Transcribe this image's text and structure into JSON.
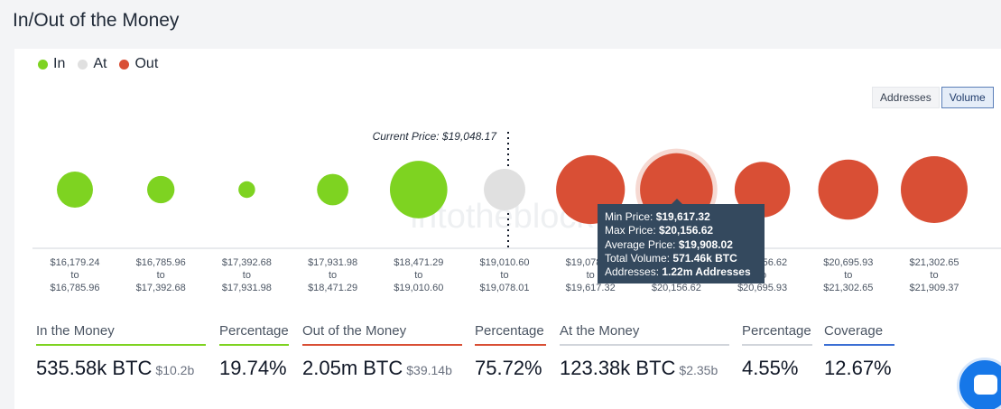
{
  "page": {
    "title": "In/Out of the Money"
  },
  "legend": [
    {
      "label": "In",
      "color": "#7ed321"
    },
    {
      "label": "At",
      "color": "#e0e0e0"
    },
    {
      "label": "Out",
      "color": "#d94f35"
    }
  ],
  "toggle": {
    "addresses_label": "Addresses",
    "volume_label": "Volume",
    "active": "Volume"
  },
  "watermark": "intotheblock",
  "chart_data": {
    "type": "bubble",
    "title": "",
    "current_price_label": "Current Price: $19,048.17",
    "current_price": 19048.17,
    "categories": [
      {
        "from": "$16,179.24",
        "to": "$16,785.96",
        "status": "In",
        "relative_size": 0.54
      },
      {
        "from": "$16,785.96",
        "to": "$17,392.68",
        "status": "In",
        "relative_size": 0.41
      },
      {
        "from": "$17,392.68",
        "to": "$17,931.98",
        "status": "In",
        "relative_size": 0.25
      },
      {
        "from": "$17,931.98",
        "to": "$18,471.29",
        "status": "In",
        "relative_size": 0.47
      },
      {
        "from": "$18,471.29",
        "to": "$19,010.60",
        "status": "In",
        "relative_size": 0.86
      },
      {
        "from": "$19,010.60",
        "to": "$19,078.01",
        "status": "At",
        "relative_size": 0.62
      },
      {
        "from": "$19,078.01",
        "to": "$19,617.32",
        "status": "Out",
        "relative_size": 1.03
      },
      {
        "from": "$19,617.32",
        "to": "$20,156.62",
        "status": "Out",
        "relative_size": 1.09,
        "hovered": true
      },
      {
        "from": "$20,156.62",
        "to": "$20,695.93",
        "status": "Out",
        "relative_size": 0.83
      },
      {
        "from": "$20,695.93",
        "to": "$21,302.65",
        "status": "Out",
        "relative_size": 0.9
      },
      {
        "from": "$21,302.65",
        "to": "$21,909.37",
        "status": "Out",
        "relative_size": 1.0
      }
    ],
    "range_connector": "to"
  },
  "tooltip": {
    "min_price_label": "Min Price:",
    "min_price": "$19,617.32",
    "max_price_label": "Max Price:",
    "max_price": "$20,156.62",
    "avg_price_label": "Average Price:",
    "avg_price": "$19,908.02",
    "volume_label": "Total Volume:",
    "volume": "571.46k BTC",
    "addresses_label": "Addresses:",
    "addresses": "1.22m Addresses"
  },
  "stats": [
    {
      "label": "In the Money",
      "value": "535.58k BTC",
      "sub": "$10.2b",
      "color": "#7ed321"
    },
    {
      "label": "Percentage",
      "value": "19.74%",
      "sub": "",
      "color": "#7ed321"
    },
    {
      "label": "Out of the Money",
      "value": "2.05m BTC",
      "sub": "$39.14b",
      "color": "#d94f35"
    },
    {
      "label": "Percentage",
      "value": "75.72%",
      "sub": "",
      "color": "#d94f35"
    },
    {
      "label": "At the Money",
      "value": "123.38k BTC",
      "sub": "$2.35b",
      "color": "#d1d5db"
    },
    {
      "label": "Percentage",
      "value": "4.55%",
      "sub": "",
      "color": "#d1d5db"
    },
    {
      "label": "Coverage",
      "value": "12.67%",
      "sub": "",
      "color": "#3b6fd4"
    }
  ]
}
